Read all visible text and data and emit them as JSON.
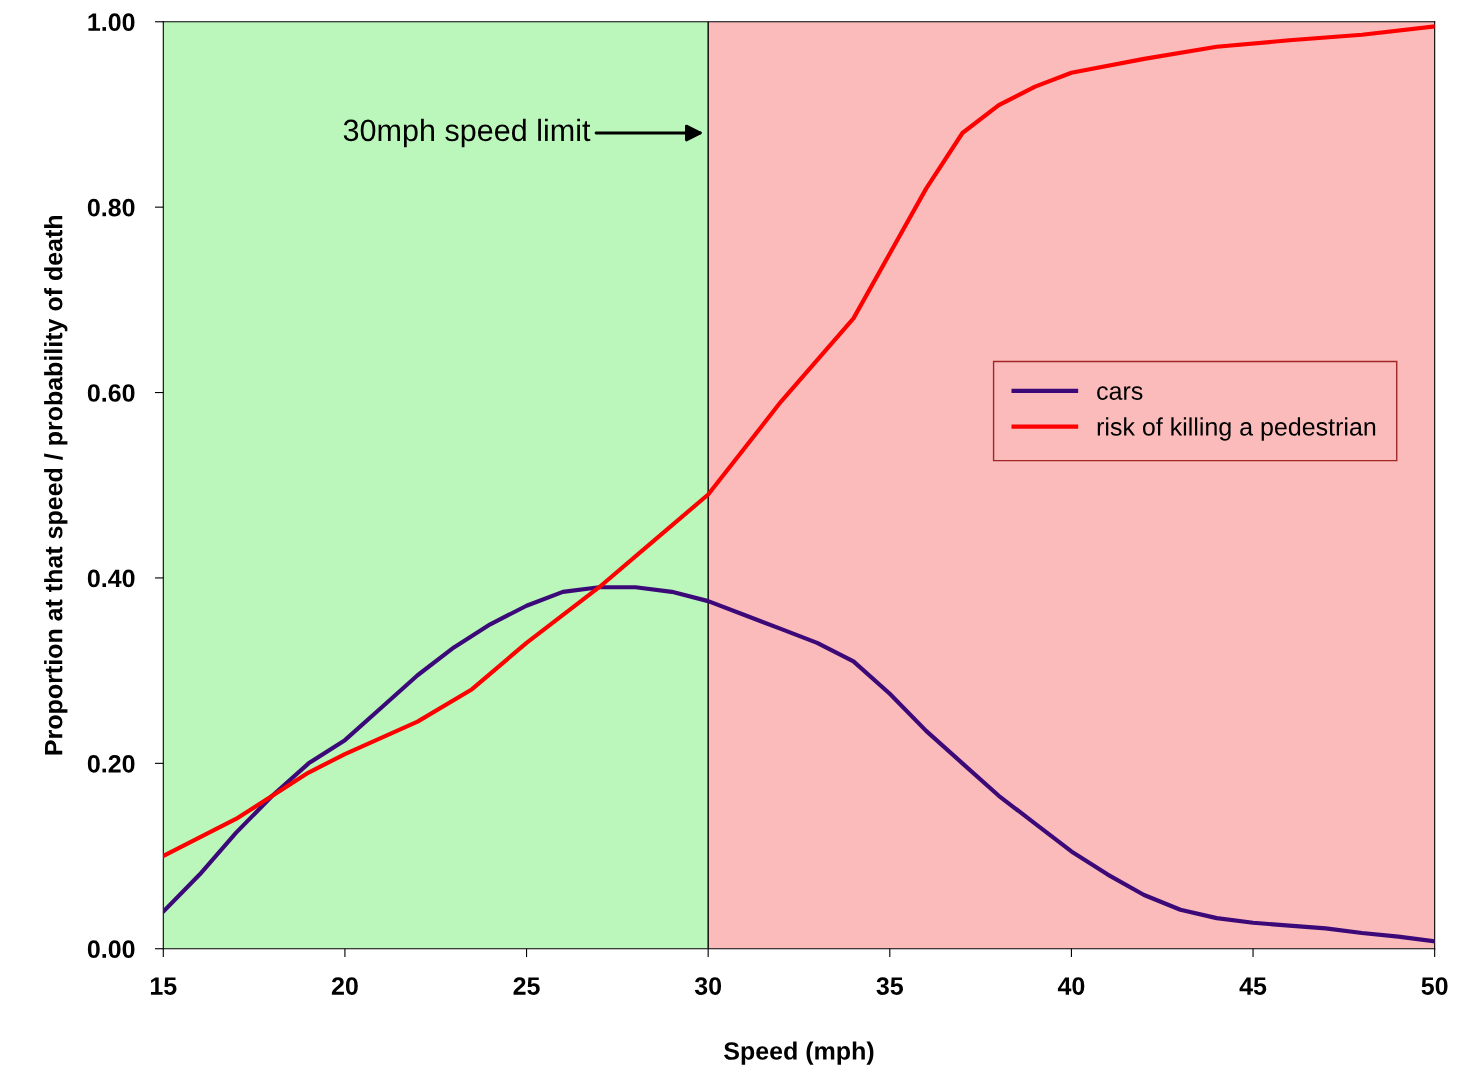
{
  "chart_data": {
    "type": "line",
    "xlabel": "Speed (mph)",
    "ylabel": "Proportion at that speed / probability of death",
    "xlim": [
      15,
      50
    ],
    "xticks": [
      15,
      20,
      25,
      30,
      35,
      40,
      45,
      50
    ],
    "ylim": [
      0,
      1
    ],
    "yticks": [
      {
        "value": 0,
        "label": "0.00"
      },
      {
        "value": 0.2,
        "label": "0.20"
      },
      {
        "value": 0.4,
        "label": "0.40"
      },
      {
        "value": 0.6,
        "label": "0.60"
      },
      {
        "value": 0.8,
        "label": "0.80"
      },
      {
        "value": 1,
        "label": "1.00"
      }
    ],
    "series": [
      {
        "name": "cars",
        "color": "#3c0a78",
        "x": [
          15,
          16,
          17,
          18,
          19,
          20,
          21,
          22,
          23,
          24,
          25,
          26,
          27,
          28,
          29,
          30,
          31,
          32,
          33,
          34,
          35,
          36,
          37,
          38,
          39,
          40,
          41,
          42,
          43,
          44,
          45,
          46,
          47,
          48,
          49,
          50
        ],
        "values": [
          0.04,
          0.08,
          0.125,
          0.165,
          0.2,
          0.225,
          0.26,
          0.295,
          0.325,
          0.35,
          0.37,
          0.385,
          0.39,
          0.39,
          0.385,
          0.375,
          0.36,
          0.345,
          0.33,
          0.31,
          0.275,
          0.235,
          0.2,
          0.165,
          0.135,
          0.105,
          0.08,
          0.058,
          0.042,
          0.033,
          0.028,
          0.025,
          0.022,
          0.017,
          0.013,
          0.008
        ]
      },
      {
        "name": "risk of killing a pedestrian",
        "color": "#ff0000",
        "x": [
          15,
          17,
          19,
          20,
          22,
          23.5,
          25,
          27,
          28.5,
          30,
          32,
          34,
          35,
          36,
          37,
          38,
          39,
          40,
          42,
          44,
          46,
          48,
          50
        ],
        "values": [
          0.1,
          0.14,
          0.19,
          0.21,
          0.245,
          0.28,
          0.33,
          0.39,
          0.44,
          0.49,
          0.59,
          0.68,
          0.75,
          0.82,
          0.88,
          0.91,
          0.93,
          0.945,
          0.96,
          0.973,
          0.98,
          0.986,
          0.995
        ]
      }
    ],
    "bands": [
      {
        "axis": "x",
        "from": 15,
        "to": 30,
        "color": "#bbf7bb"
      },
      {
        "axis": "x",
        "from": 30,
        "to": 50,
        "color": "#fbbbbb"
      }
    ],
    "ref_lines": [
      {
        "axis": "x",
        "value": 30,
        "color": "#000000"
      }
    ],
    "annotations": [
      "30mph speed limit"
    ],
    "legend": "right",
    "grid": false,
    "marker": "none",
    "line_style": "solid"
  }
}
